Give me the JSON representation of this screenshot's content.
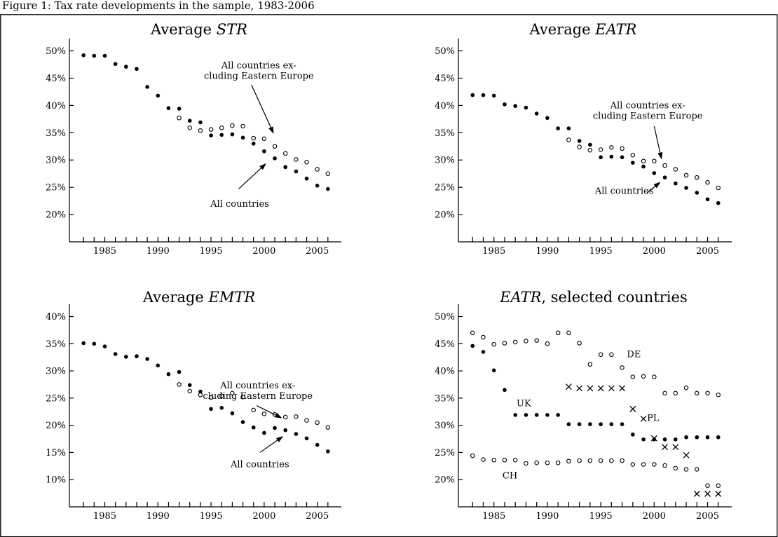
{
  "caption": "Figure 1: Tax rate developments in the sample, 1983-2006",
  "years": [
    1983,
    1984,
    1985,
    1986,
    1987,
    1988,
    1989,
    1990,
    1991,
    1992,
    1993,
    1994,
    1995,
    1996,
    1997,
    1998,
    1999,
    2000,
    2001,
    2002,
    2003,
    2004,
    2005,
    2006
  ],
  "chart_data": [
    {
      "type": "scatter",
      "title_prefix": "Average ",
      "title_italic": "STR",
      "title_suffix": "",
      "xlim": [
        1982,
        2007
      ],
      "ylim": [
        15,
        52
      ],
      "x_ticks": [
        1985,
        1990,
        1995,
        2000,
        2005
      ],
      "y_ticks": [
        20,
        25,
        30,
        35,
        40,
        45,
        50
      ],
      "y_tick_labels": [
        "20%",
        "25%",
        "30%",
        "35%",
        "40%",
        "45%",
        "50%"
      ],
      "series": [
        {
          "marker": "filled",
          "x_start": 1983,
          "values": [
            49.2,
            49.1,
            49.1,
            47.6,
            47.1,
            46.7,
            43.4,
            41.8,
            39.5,
            39.4,
            37.2,
            36.9,
            34.5,
            34.6,
            34.7,
            34.1,
            33.0,
            31.6,
            30.3,
            28.7,
            27.9,
            26.6,
            25.3,
            24.7
          ]
        },
        {
          "marker": "open",
          "x_start": 1992,
          "values": [
            37.7,
            35.9,
            35.4,
            35.6,
            35.9,
            36.3,
            36.2,
            34.0,
            33.9,
            32.5,
            31.2,
            30.1,
            29.6,
            28.3,
            27.5
          ]
        }
      ],
      "annotations": [
        {
          "lines": [
            "All countries ex-",
            "cluding Eastern Europe"
          ],
          "text_year": 1999.5,
          "text_value": 46.8,
          "arrow_from": [
            1998.8,
            43.8
          ],
          "arrow_to": [
            2000.9,
            34.8
          ]
        },
        {
          "lines": [
            "All countries"
          ],
          "text_year": 1997.7,
          "text_value": 21.4,
          "arrow_from": [
            1997.6,
            24.7
          ],
          "arrow_to": [
            2000.2,
            29.4
          ]
        }
      ]
    },
    {
      "type": "scatter",
      "title_prefix": "Average ",
      "title_italic": "EATR",
      "title_suffix": "",
      "xlim": [
        1982,
        2007
      ],
      "ylim": [
        15,
        52
      ],
      "x_ticks": [
        1985,
        1990,
        1995,
        2000,
        2005
      ],
      "y_ticks": [
        20,
        25,
        30,
        35,
        40,
        45,
        50
      ],
      "y_tick_labels": [
        "20%",
        "25%",
        "30%",
        "35%",
        "40%",
        "45%",
        "50%"
      ],
      "series": [
        {
          "marker": "filled",
          "x_start": 1983,
          "values": [
            41.9,
            41.9,
            41.8,
            40.2,
            39.9,
            39.6,
            38.5,
            37.7,
            35.8,
            35.8,
            33.5,
            32.8,
            30.5,
            30.6,
            30.5,
            29.5,
            28.8,
            27.6,
            26.8,
            25.7,
            24.9,
            24.0,
            22.8,
            22.1
          ]
        },
        {
          "marker": "open",
          "x_start": 1992,
          "values": [
            33.7,
            32.4,
            31.8,
            31.9,
            32.3,
            32.1,
            30.9,
            29.8,
            29.8,
            29.0,
            28.3,
            27.2,
            26.8,
            25.9,
            24.9
          ]
        }
      ],
      "annotations": [
        {
          "lines": [
            "All countries ex-",
            "cluding Eastern Europe"
          ],
          "text_year": 1999.4,
          "text_value": 39.5,
          "arrow_from": [
            2000.0,
            36.2
          ],
          "arrow_to": [
            2000.7,
            30.1
          ]
        },
        {
          "lines": [
            "All countries"
          ],
          "text_year": 1997.2,
          "text_value": 23.8,
          "arrow_from": [
            1999.3,
            23.9
          ],
          "arrow_to": [
            2000.6,
            26.0
          ]
        }
      ]
    },
    {
      "type": "scatter",
      "title_prefix": "Average ",
      "title_italic": "EMTR",
      "title_suffix": "",
      "xlim": [
        1982,
        2007
      ],
      "ylim": [
        5,
        42
      ],
      "x_ticks": [
        1985,
        1990,
        1995,
        2000,
        2005
      ],
      "y_ticks": [
        10,
        15,
        20,
        25,
        30,
        35,
        40
      ],
      "y_tick_labels": [
        "10%",
        "15%",
        "20%",
        "25%",
        "30%",
        "35%",
        "40%"
      ],
      "series": [
        {
          "marker": "filled",
          "x_start": 1983,
          "values": [
            35.1,
            35.0,
            34.5,
            33.1,
            32.6,
            32.7,
            32.2,
            31.0,
            29.4,
            29.8,
            27.4,
            26.2,
            23.0,
            23.2,
            22.2,
            20.6,
            19.6,
            18.6,
            19.5,
            19.1,
            18.4,
            17.6,
            16.4,
            15.2
          ]
        },
        {
          "marker": "open",
          "x_start": 1992,
          "values": [
            27.5,
            26.3,
            25.6,
            25.1,
            25.4,
            25.9,
            25.2,
            22.8,
            22.1,
            22.0,
            21.5,
            21.6,
            20.9,
            20.5,
            19.6
          ]
        }
      ],
      "annotations": [
        {
          "lines": [
            "All countries ex-",
            "cluding Eastern Europe"
          ],
          "text_year": 1999.4,
          "text_value": 26.8,
          "arrow_from": [
            1999.3,
            23.6
          ],
          "arrow_to": [
            2001.7,
            21.3
          ]
        },
        {
          "lines": [
            "All countries"
          ],
          "text_year": 1999.6,
          "text_value": 12.3,
          "arrow_from": [
            1999.6,
            15.0
          ],
          "arrow_to": [
            2001.8,
            18.0
          ]
        }
      ]
    },
    {
      "type": "scatter",
      "title_prefix": "",
      "title_italic": "EATR",
      "title_suffix": ", selected countries",
      "xlim": [
        1982,
        2007
      ],
      "ylim": [
        15,
        52
      ],
      "x_ticks": [
        1985,
        1990,
        1995,
        2000,
        2005
      ],
      "y_ticks": [
        20,
        25,
        30,
        35,
        40,
        45,
        50
      ],
      "y_tick_labels": [
        "20%",
        "25%",
        "30%",
        "35%",
        "40%",
        "45%",
        "50%"
      ],
      "series": [
        {
          "label": "DE",
          "marker": "open",
          "x_start": 1983,
          "values": [
            47.0,
            46.2,
            44.9,
            45.1,
            45.3,
            45.5,
            45.6,
            45.0,
            47.0,
            47.0,
            45.1,
            41.2,
            43.0,
            43.0,
            40.6,
            38.9,
            39.0,
            38.9,
            35.9,
            35.9,
            36.9,
            35.9,
            35.9,
            35.6
          ]
        },
        {
          "label": "UK",
          "marker": "filled",
          "x_start": 1983,
          "values": [
            44.6,
            43.5,
            40.1,
            36.5,
            31.9,
            31.9,
            31.9,
            31.9,
            31.9,
            30.2,
            30.2,
            30.2,
            30.2,
            30.2,
            30.2,
            28.3,
            27.4,
            27.4,
            27.4,
            27.4,
            27.8,
            27.8,
            27.8,
            27.8
          ]
        },
        {
          "label": "CH",
          "marker": "open",
          "x_start": 1983,
          "values": [
            24.4,
            23.7,
            23.6,
            23.6,
            23.6,
            23.0,
            23.1,
            23.1,
            23.1,
            23.4,
            23.5,
            23.5,
            23.5,
            23.5,
            23.5,
            22.8,
            22.8,
            22.8,
            22.6,
            22.1,
            21.9,
            21.9,
            18.9,
            18.9
          ]
        },
        {
          "label": "PL",
          "marker": "cross",
          "x_start": 1992,
          "values": [
            37.1,
            36.8,
            36.8,
            36.8,
            36.8,
            36.8,
            33.0,
            31.2,
            27.6,
            26.0,
            26.0,
            24.5,
            17.4,
            17.4,
            17.4
          ]
        }
      ],
      "labels": [
        {
          "text": "DE",
          "year": 1998.1,
          "value": 42.5
        },
        {
          "text": "UK",
          "year": 1987.8,
          "value": 33.5
        },
        {
          "text": "PL",
          "year": 1999.9,
          "value": 30.8
        },
        {
          "text": "CH",
          "year": 1986.5,
          "value": 20.2
        }
      ]
    }
  ]
}
